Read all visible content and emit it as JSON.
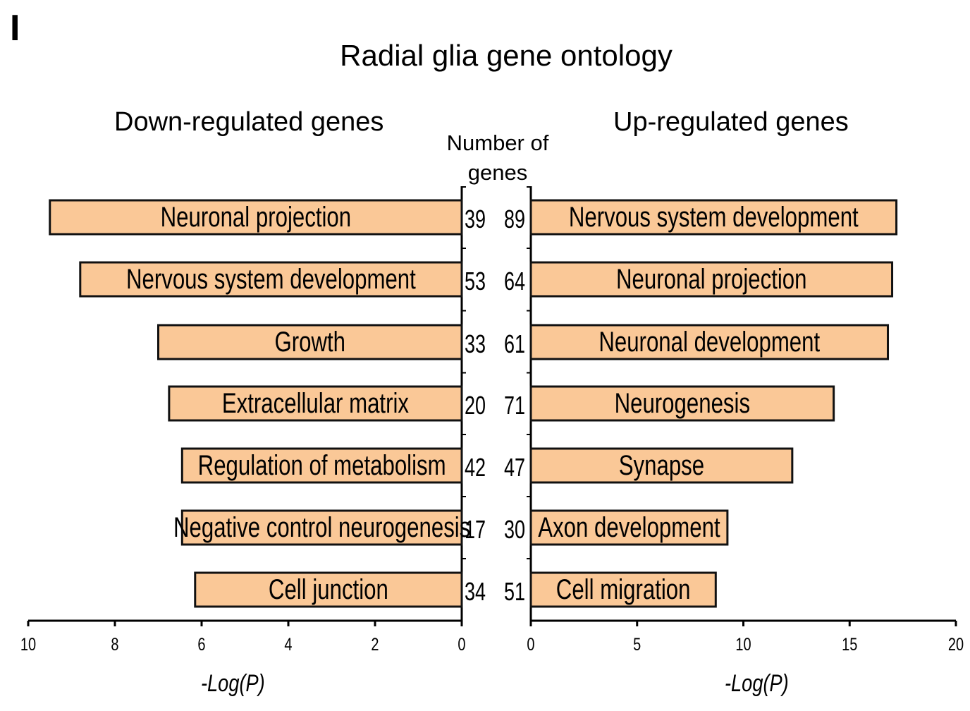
{
  "panel_label": "I",
  "chart_data": {
    "type": "bar",
    "title": "Radial glia gene ontology",
    "count_header": "Number of genes",
    "panels": [
      {
        "side": "left",
        "title": "Down-regulated genes",
        "xlabel": "-Log(P)",
        "xlim": [
          0,
          10
        ],
        "xticks": [
          10,
          8,
          6,
          4,
          2,
          0
        ],
        "direction": "reversed",
        "categories": [
          "Neuronal projection",
          "Nervous system development",
          "Growth",
          "Extracellular matrix",
          "Regulation of metabolism",
          "Negative control neurogenesis",
          "Cell junction"
        ],
        "values": [
          9.5,
          8.8,
          7.0,
          6.75,
          6.45,
          6.45,
          6.15
        ],
        "counts": [
          39,
          53,
          33,
          20,
          42,
          17,
          34
        ]
      },
      {
        "side": "right",
        "title": "Up-regulated genes",
        "xlabel": "-Log(P)",
        "xlim": [
          0,
          20
        ],
        "xticks": [
          0,
          5,
          10,
          15,
          20
        ],
        "direction": "normal",
        "categories": [
          "Nervous system development",
          "Neuronal projection",
          "Neuronal development",
          "Neurogenesis",
          "Synapse",
          "Axon development",
          "Cell migration"
        ],
        "values": [
          17.2,
          17.0,
          16.8,
          14.25,
          12.3,
          9.25,
          8.7
        ],
        "counts": [
          89,
          64,
          61,
          71,
          47,
          30,
          51
        ]
      }
    ],
    "bar_color": "#FAC897",
    "bar_edge_color": "#111111"
  }
}
